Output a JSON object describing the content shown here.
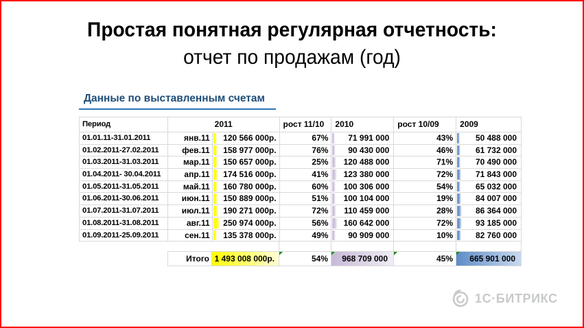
{
  "slide": {
    "title_line1": "Простая понятная регулярная отчетность:",
    "title_line2": "отчет по продажам (год)",
    "section_heading": "Данные по выставленным счетам"
  },
  "table": {
    "headers": {
      "period": "Период",
      "y2011": "2011",
      "growth_11_10": "рост 11/10",
      "y2010": "2010",
      "growth_10_09": "рост 10/09",
      "y2009": "2009"
    },
    "rows": [
      {
        "period": "01.01.11-31.01.2011",
        "month": "янв.11",
        "amount_2011": "120 566 000р.",
        "value_2011": 120566,
        "growth_11_10": "67%",
        "amount_2010": "71 991 000",
        "value_2010": 71991,
        "growth_10_09": "43%",
        "amount_2009": "50 488 000",
        "value_2009": 50488
      },
      {
        "period": "01.02.2011-27.02.2011",
        "month": "фев.11",
        "amount_2011": "158 977 000р.",
        "value_2011": 158977,
        "growth_11_10": "76%",
        "amount_2010": "90 430 000",
        "value_2010": 90430,
        "growth_10_09": "46%",
        "amount_2009": "61 732 000",
        "value_2009": 61732
      },
      {
        "period": "01.03.2011-31.03.2011",
        "month": "мар.11",
        "amount_2011": "150 657 000р.",
        "value_2011": 150657,
        "growth_11_10": "25%",
        "amount_2010": "120 488 000",
        "value_2010": 120488,
        "growth_10_09": "71%",
        "amount_2009": "70 490 000",
        "value_2009": 70490
      },
      {
        "period": "01.04.2011- 30.04.2011",
        "month": "апр.11",
        "amount_2011": "174 516 000р.",
        "value_2011": 174516,
        "growth_11_10": "41%",
        "amount_2010": "123 380 000",
        "value_2010": 123380,
        "growth_10_09": "72%",
        "amount_2009": "71 843 000",
        "value_2009": 71843
      },
      {
        "period": "01.05.2011-31.05.2011",
        "month": "май.11",
        "amount_2011": "160 780 000р.",
        "value_2011": 160780,
        "growth_11_10": "60%",
        "amount_2010": "100 306 000",
        "value_2010": 100306,
        "growth_10_09": "54%",
        "amount_2009": "65 032 000",
        "value_2009": 65032
      },
      {
        "period": "01.06.2011-30.06.2011",
        "month": "июн.11",
        "amount_2011": "150 889 000р.",
        "value_2011": 150889,
        "growth_11_10": "51%",
        "amount_2010": "100 104 000",
        "value_2010": 100104,
        "growth_10_09": "19%",
        "amount_2009": "84 007 000",
        "value_2009": 84007
      },
      {
        "period": "01.07.2011-31.07.2011",
        "month": "июл.11",
        "amount_2011": "190 271 000р.",
        "value_2011": 190271,
        "growth_11_10": "72%",
        "amount_2010": "110 459 000",
        "value_2010": 110459,
        "growth_10_09": "28%",
        "amount_2009": "86 364 000",
        "value_2009": 86364
      },
      {
        "period": "01.08.2011-31.08.2011",
        "month": "авг.11",
        "amount_2011": "250 974 000р.",
        "value_2011": 250974,
        "growth_11_10": "56%",
        "amount_2010": "160 642 000",
        "value_2010": 160642,
        "growth_10_09": "72%",
        "amount_2009": "93 185 000",
        "value_2009": 93185
      },
      {
        "period": "01.09.2011-25.09.2011",
        "month": "сен.11",
        "amount_2011": "135 378 000р.",
        "value_2011": 135378,
        "growth_11_10": "49%",
        "amount_2010": "90 909 000",
        "value_2010": 90909,
        "growth_10_09": "10%",
        "amount_2009": "82 760 000",
        "value_2009": 82760
      }
    ],
    "totals": {
      "label": "Итого",
      "amount_2011": "1 493 008 000р.",
      "growth_11_10": "54%",
      "amount_2010": "968 709 000",
      "growth_10_09": "45%",
      "amount_2009": "665 901 000"
    },
    "bar_scale": {
      "y2011": {
        "max": 250974,
        "px": 10
      },
      "y2010": {
        "max": 160642,
        "px": 8
      },
      "y2009": {
        "max": 93185,
        "px": 7
      }
    },
    "colors": {
      "bar_2011": "#FFFF00",
      "bar_2010": "#CDC2DC",
      "bar_2009": "#6F97CB",
      "total_2011_bg": [
        "#FFFF00",
        "#FFFFD8"
      ],
      "total_2010_bg": [
        "#C7B9D7",
        "#F0ECF5"
      ],
      "total_2009_bg": [
        "#5E8CC7",
        "#C8D9EE"
      ],
      "grid": "#D9D9D9",
      "indicator_green": "#1E8A1E"
    }
  },
  "colors": {
    "slide_border": "#FE0000",
    "heading_text": "#1F4E79",
    "heading_underline": "#2E75B6",
    "logo_gray": "#C7C9CB"
  },
  "logo": {
    "text": "1С·БИТРИКС"
  }
}
